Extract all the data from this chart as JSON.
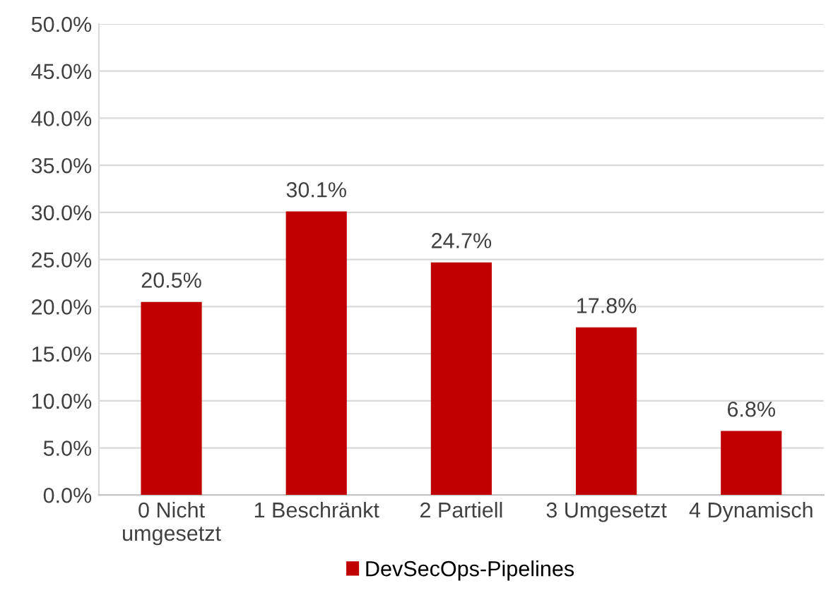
{
  "chart_data": {
    "type": "bar",
    "categories": [
      "0 Nicht\numgesetzt",
      "1 Beschränkt",
      "2 Partiell",
      "3 Umgesetzt",
      "4 Dynamisch"
    ],
    "series": [
      {
        "name": "DevSecOps-Pipelines",
        "color": "#c00000",
        "values": [
          20.5,
          30.1,
          24.7,
          17.8,
          6.8
        ],
        "value_labels": [
          "20.5%",
          "30.1%",
          "24.7%",
          "17.8%",
          "6.8%"
        ]
      }
    ],
    "ylim": [
      0,
      50
    ],
    "yticks": [
      {
        "value": 0,
        "label": "0.0%"
      },
      {
        "value": 5,
        "label": "5.0%"
      },
      {
        "value": 10,
        "label": "10.0%"
      },
      {
        "value": 15,
        "label": "15.0%"
      },
      {
        "value": 20,
        "label": "20.0%"
      },
      {
        "value": 25,
        "label": "25.0%"
      },
      {
        "value": 30,
        "label": "30.0%"
      },
      {
        "value": 35,
        "label": "35.0%"
      },
      {
        "value": 40,
        "label": "40.0%"
      },
      {
        "value": 45,
        "label": "45.0%"
      },
      {
        "value": 50,
        "label": "50.0%"
      }
    ],
    "grid": "y",
    "legend": "bottom"
  }
}
